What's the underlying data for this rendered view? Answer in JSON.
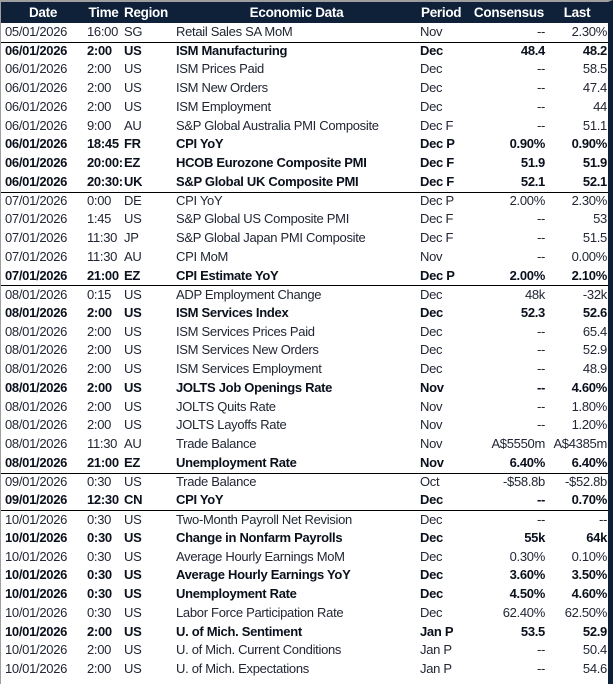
{
  "colors": {
    "header_bg": "#0e2138",
    "header_text": "#ffffff",
    "row_bg": "#ffffff",
    "text_regular": "#212634",
    "text_bold": "#0b101d",
    "group_separator": "#000000",
    "outer_border": "#9e9e9e"
  },
  "table": {
    "columns": [
      {
        "key": "date",
        "label": "Date"
      },
      {
        "key": "time",
        "label": "Time"
      },
      {
        "key": "region",
        "label": "Region"
      },
      {
        "key": "event",
        "label": "Economic Data"
      },
      {
        "key": "period",
        "label": "Period"
      },
      {
        "key": "consensus",
        "label": "Consensus"
      },
      {
        "key": "last",
        "label": "Last"
      }
    ],
    "groups": [
      {
        "date": "05/01/2026",
        "rows": [
          {
            "time": "16:00",
            "region": "SG",
            "event": "Retail Sales SA MoM",
            "period": "Nov",
            "consensus": "--",
            "last": "2.30%",
            "bold": false
          }
        ]
      },
      {
        "date": "06/01/2026",
        "rows": [
          {
            "time": "2:00",
            "region": "US",
            "event": "ISM Manufacturing",
            "period": "Dec",
            "consensus": "48.4",
            "last": "48.2",
            "bold": true
          },
          {
            "time": "2:00",
            "region": "US",
            "event": "ISM Prices Paid",
            "period": "Dec",
            "consensus": "--",
            "last": "58.5",
            "bold": false
          },
          {
            "time": "2:00",
            "region": "US",
            "event": "ISM New Orders",
            "period": "Dec",
            "consensus": "--",
            "last": "47.4",
            "bold": false
          },
          {
            "time": "2:00",
            "region": "US",
            "event": "ISM Employment",
            "period": "Dec",
            "consensus": "--",
            "last": "44",
            "bold": false
          },
          {
            "time": "9:00",
            "region": "AU",
            "event": "S&P Global Australia PMI Composite",
            "period": "Dec F",
            "consensus": "--",
            "last": "51.1",
            "bold": false
          },
          {
            "time": "18:45",
            "region": "FR",
            "event": "CPI YoY",
            "period": "Dec P",
            "consensus": "0.90%",
            "last": "0.90%",
            "bold": true
          },
          {
            "time": "20:00:00",
            "region": "EZ",
            "event": "HCOB Eurozone Composite PMI",
            "period": "Dec F",
            "consensus": "51.9",
            "last": "51.9",
            "bold": true
          },
          {
            "time": "20:30:00",
            "region": "UK",
            "event": "S&P Global UK Composite PMI",
            "period": "Dec F",
            "consensus": "52.1",
            "last": "52.1",
            "bold": true
          }
        ]
      },
      {
        "date": "07/01/2026",
        "rows": [
          {
            "time": "0:00",
            "region": "DE",
            "event": "CPI YoY",
            "period": "Dec P",
            "consensus": "2.00%",
            "last": "2.30%",
            "bold": false
          },
          {
            "time": "1:45",
            "region": "US",
            "event": "S&P Global US Composite PMI",
            "period": "Dec F",
            "consensus": "--",
            "last": "53",
            "bold": false
          },
          {
            "time": "11:30",
            "region": "JP",
            "event": "S&P Global Japan PMI Composite",
            "period": "Dec F",
            "consensus": "--",
            "last": "51.5",
            "bold": false
          },
          {
            "time": "11:30",
            "region": "AU",
            "event": "CPI MoM",
            "period": "Nov",
            "consensus": "--",
            "last": "0.00%",
            "bold": false
          },
          {
            "time": "21:00",
            "region": "EZ",
            "event": "CPI Estimate YoY",
            "period": "Dec P",
            "consensus": "2.00%",
            "last": "2.10%",
            "bold": true
          }
        ]
      },
      {
        "date": "08/01/2026",
        "rows": [
          {
            "time": "0:15",
            "region": "US",
            "event": "ADP Employment Change",
            "period": "Dec",
            "consensus": "48k",
            "last": "-32k",
            "bold": false
          },
          {
            "time": "2:00",
            "region": "US",
            "event": "ISM Services Index",
            "period": "Dec",
            "consensus": "52.3",
            "last": "52.6",
            "bold": true
          },
          {
            "time": "2:00",
            "region": "US",
            "event": "ISM Services Prices Paid",
            "period": "Dec",
            "consensus": "--",
            "last": "65.4",
            "bold": false
          },
          {
            "time": "2:00",
            "region": "US",
            "event": "ISM Services New Orders",
            "period": "Dec",
            "consensus": "--",
            "last": "52.9",
            "bold": false
          },
          {
            "time": "2:00",
            "region": "US",
            "event": "ISM Services Employment",
            "period": "Dec",
            "consensus": "--",
            "last": "48.9",
            "bold": false
          },
          {
            "time": "2:00",
            "region": "US",
            "event": "JOLTS Job Openings Rate",
            "period": "Nov",
            "consensus": "--",
            "last": "4.60%",
            "bold": true
          },
          {
            "time": "2:00",
            "region": "US",
            "event": "JOLTS Quits Rate",
            "period": "Nov",
            "consensus": "--",
            "last": "1.80%",
            "bold": false
          },
          {
            "time": "2:00",
            "region": "US",
            "event": "JOLTS Layoffs Rate",
            "period": "Nov",
            "consensus": "--",
            "last": "1.20%",
            "bold": false
          },
          {
            "time": "11:30",
            "region": "AU",
            "event": "Trade Balance",
            "period": "Nov",
            "consensus": "A$5550m",
            "last": "A$4385m",
            "bold": false
          },
          {
            "time": "21:00",
            "region": "EZ",
            "event": "Unemployment Rate",
            "period": "Nov",
            "consensus": "6.40%",
            "last": "6.40%",
            "bold": true
          }
        ]
      },
      {
        "date": "09/01/2026",
        "rows": [
          {
            "time": "0:30",
            "region": "US",
            "event": "Trade Balance",
            "period": "Oct",
            "consensus": "-$58.8b",
            "last": "-$52.8b",
            "bold": false
          },
          {
            "time": "12:30",
            "region": "CN",
            "event": "CPI YoY",
            "period": "Dec",
            "consensus": "--",
            "last": "0.70%",
            "bold": true
          }
        ]
      },
      {
        "date": "10/01/2026",
        "rows": [
          {
            "time": "0:30",
            "region": "US",
            "event": "Two-Month Payroll Net Revision",
            "period": "Dec",
            "consensus": "--",
            "last": "--",
            "bold": false
          },
          {
            "time": "0:30",
            "region": "US",
            "event": "Change in Nonfarm Payrolls",
            "period": "Dec",
            "consensus": "55k",
            "last": "64k",
            "bold": true
          },
          {
            "time": "0:30",
            "region": "US",
            "event": "Average Hourly Earnings MoM",
            "period": "Dec",
            "consensus": "0.30%",
            "last": "0.10%",
            "bold": false
          },
          {
            "time": "0:30",
            "region": "US",
            "event": "Average Hourly Earnings YoY",
            "period": "Dec",
            "consensus": "3.60%",
            "last": "3.50%",
            "bold": true
          },
          {
            "time": "0:30",
            "region": "US",
            "event": "Unemployment Rate",
            "period": "Dec",
            "consensus": "4.50%",
            "last": "4.60%",
            "bold": true
          },
          {
            "time": "0:30",
            "region": "US",
            "event": "Labor Force Participation Rate",
            "period": "Dec",
            "consensus": "62.40%",
            "last": "62.50%",
            "bold": false
          },
          {
            "time": "2:00",
            "region": "US",
            "event": "U. of Mich. Sentiment",
            "period": "Jan P",
            "consensus": "53.5",
            "last": "52.9",
            "bold": true
          },
          {
            "time": "2:00",
            "region": "US",
            "event": "U. of Mich. Current Conditions",
            "period": "Jan P",
            "consensus": "--",
            "last": "50.4",
            "bold": false
          },
          {
            "time": "2:00",
            "region": "US",
            "event": "U. of Mich. Expectations",
            "period": "Jan P",
            "consensus": "--",
            "last": "54.6",
            "bold": false
          }
        ]
      }
    ]
  }
}
